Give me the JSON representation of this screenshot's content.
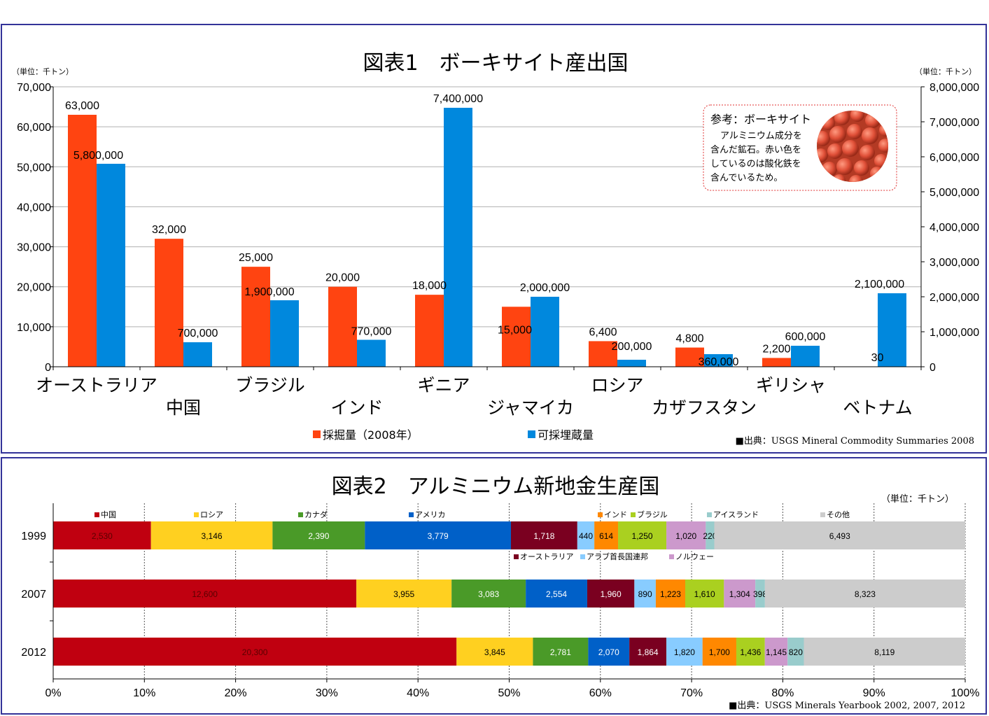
{
  "chart1": {
    "title": "図表1　ボーキサイト産出国",
    "unit_left": "（単位：千トン）",
    "unit_right": "（単位：千トン）",
    "source": "■出典：USGS Mineral Commodity Summaries 2008",
    "note": {
      "heading": "参考：ボーキサイト",
      "lines": [
        "アルミニウム成分を",
        "含んだ鉱石。赤い色を",
        "しているのは酸化鉄を",
        "含んでいるため。"
      ]
    },
    "colors": {
      "production": "#ff4411",
      "reserves": "#0088dd"
    }
  },
  "chart2": {
    "title": "図表2　アルミニウム新地金生産国",
    "unit": "（単位：千トン）",
    "source": "■出典：USGS Minerals Yearbook 2002, 2007, 2012"
  },
  "chart_data": [
    {
      "type": "bar",
      "title": "図表1　ボーキサイト産出国",
      "categories": [
        "オーストラリア",
        "中国",
        "ブラジル",
        "インド",
        "ギニア",
        "ジャマイカ",
        "ロシア",
        "カザフスタン",
        "ギリシャ",
        "ベトナム"
      ],
      "series": [
        {
          "name": "採掘量（2008年）",
          "axis": "left",
          "color": "#ff4411",
          "values": [
            63000,
            32000,
            25000,
            20000,
            18000,
            15000,
            6400,
            4800,
            2200,
            30
          ],
          "labels": [
            "63,000",
            "32,000",
            "25,000",
            "20,000",
            "18,000",
            "15,000",
            "6,400",
            "4,800",
            "2,200",
            "30"
          ]
        },
        {
          "name": "可採埋蔵量",
          "axis": "right",
          "color": "#0088dd",
          "values": [
            5800000,
            700000,
            1900000,
            770000,
            7400000,
            2000000,
            200000,
            360000,
            600000,
            2100000
          ],
          "labels": [
            "5,800,000",
            "700,000",
            "1,900,000",
            "770,000",
            "7,400,000",
            "2,000,000",
            "200,000",
            "360,000",
            "600,000",
            "2,100,000"
          ]
        }
      ],
      "ylim_left": [
        0,
        70000
      ],
      "ylim_right": [
        0,
        8000000
      ],
      "yticks_left": [
        "0",
        "10,000",
        "20,000",
        "30,000",
        "40,000",
        "50,000",
        "60,000",
        "70,000"
      ],
      "yticks_right": [
        "0",
        "1,000,000",
        "2,000,000",
        "3,000,000",
        "4,000,000",
        "5,000,000",
        "6,000,000",
        "7,000,000",
        "8,000,000"
      ],
      "grid": true,
      "legend": "bottom"
    },
    {
      "type": "bar",
      "orientation": "horizontal",
      "stacked": "percent",
      "title": "図表2　アルミニウム新地金生産国",
      "categories": [
        "1999",
        "2007",
        "2012"
      ],
      "series": [
        {
          "name": "中国",
          "color": "#c00010",
          "values": [
            2530,
            12600,
            20300
          ],
          "labels": [
            "2,530",
            "12,600",
            "20,300"
          ]
        },
        {
          "name": "ロシア",
          "color": "#ffd020",
          "values": [
            3146,
            3955,
            3845
          ],
          "labels": [
            "3,146",
            "3,955",
            "3,845"
          ]
        },
        {
          "name": "カナダ",
          "color": "#4a9a28",
          "values": [
            2390,
            3083,
            2781
          ],
          "labels": [
            "2,390",
            "3,083",
            "2,781"
          ]
        },
        {
          "name": "アメリカ",
          "color": "#0060c8",
          "values": [
            3779,
            2554,
            2070
          ],
          "labels": [
            "3,779",
            "2,554",
            "2,070"
          ]
        },
        {
          "name": "オーストラリア",
          "color": "#7a0020",
          "values": [
            1718,
            1960,
            1864
          ],
          "labels": [
            "1,718",
            "1,960",
            "1,864"
          ]
        },
        {
          "name": "アラブ首長国連邦",
          "color": "#88ccff",
          "values": [
            440,
            890,
            1820
          ],
          "labels": [
            "440",
            "890",
            "1,820"
          ]
        },
        {
          "name": "インド",
          "color": "#ff8800",
          "values": [
            614,
            1223,
            1700
          ],
          "labels": [
            "614",
            "1,223",
            "1,700"
          ]
        },
        {
          "name": "ブラジル",
          "color": "#aad020",
          "values": [
            1250,
            1610,
            1436
          ],
          "labels": [
            "1,250",
            "1,610",
            "1,436"
          ]
        },
        {
          "name": "ノルウェー",
          "color": "#cc99cc",
          "values": [
            1020,
            1304,
            1145
          ],
          "labels": [
            "1,020",
            "1,304",
            "1,145"
          ]
        },
        {
          "name": "アイスランド",
          "color": "#99cccc",
          "values": [
            220,
            398,
            820
          ],
          "labels": [
            "220",
            "398",
            "820"
          ]
        },
        {
          "name": "その他",
          "color": "#cccccc",
          "values": [
            6493,
            8323,
            8119
          ],
          "labels": [
            "6,493",
            "8,323",
            "8,119"
          ]
        }
      ],
      "xticks": [
        "0%",
        "10%",
        "20%",
        "30%",
        "40%",
        "50%",
        "60%",
        "70%",
        "80%",
        "90%",
        "100%"
      ],
      "xlim": [
        0,
        100
      ],
      "grid": true,
      "legend": "top"
    }
  ]
}
